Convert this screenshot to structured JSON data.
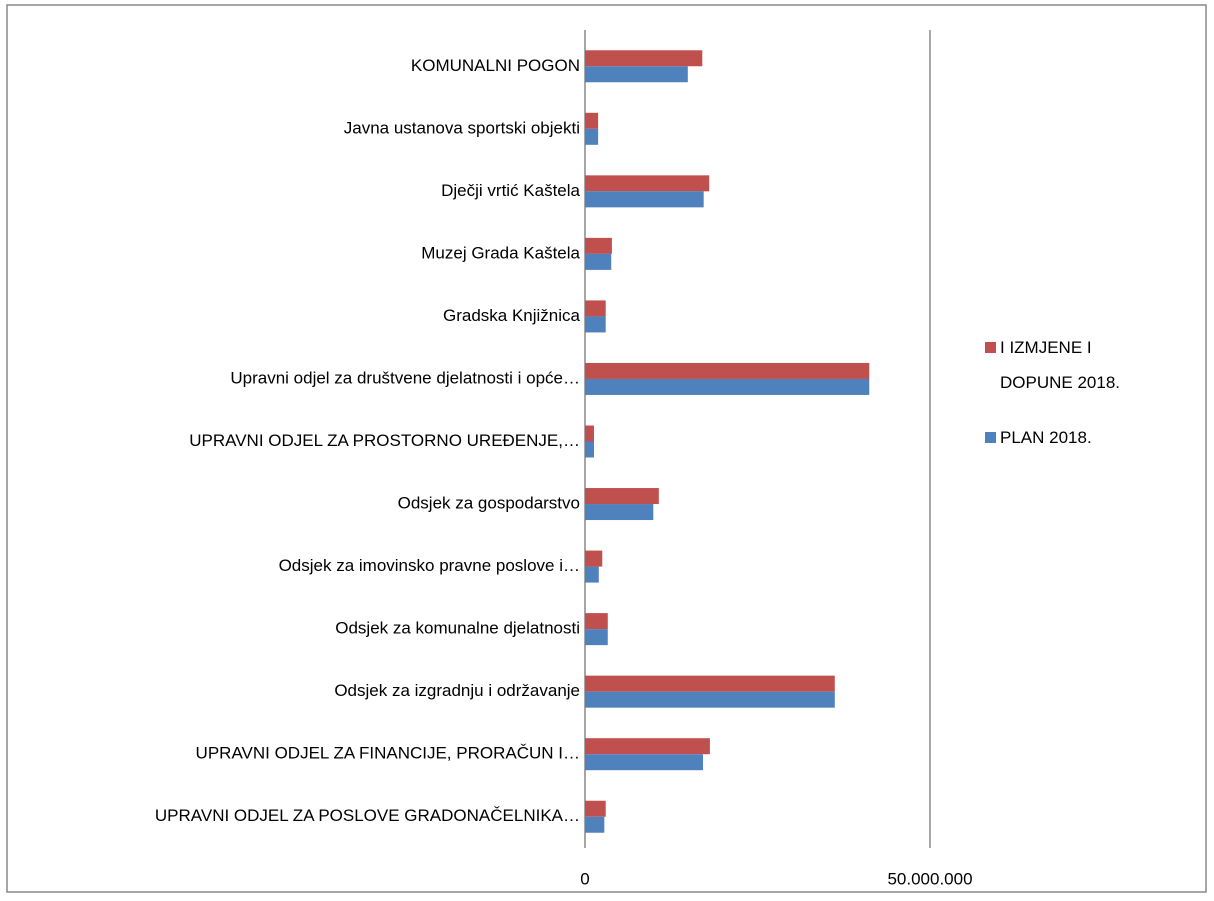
{
  "chart_data": {
    "type": "hbar",
    "categories": [
      "KOMUNALNI POGON",
      "Javna ustanova sportski objekti",
      "Dječji vrtić Kaštela",
      "Muzej Grada Kaštela",
      "Gradska Knjižnica",
      "Upravni odjel za društvene djelatnosti i opće…",
      "UPRAVNI ODJEL ZA PROSTORNO UREĐENJE,…",
      "Odsjek za gospodarstvo",
      "Odsjek za imovinsko pravne poslove i…",
      "Odsjek za komunalne djelatnosti",
      "Odsjek za izgradnju i održavanje",
      "UPRAVNI ODJEL ZA FINANCIJE, PRORAČUN I…",
      "UPRAVNI ODJEL ZA POSLOVE GRADONAČELNIKA…"
    ],
    "series": [
      {
        "name": "I IZMJENE I DOPUNE 2018.",
        "color": "#c0504d",
        "values": [
          17000000,
          1900000,
          18000000,
          3900000,
          3000000,
          41200000,
          1300000,
          10700000,
          2500000,
          3300000,
          36200000,
          18100000,
          3000000
        ]
      },
      {
        "name": "PLAN 2018.",
        "color": "#4f81bd",
        "values": [
          14900000,
          1900000,
          17200000,
          3800000,
          3000000,
          41200000,
          1300000,
          9900000,
          2000000,
          3300000,
          36200000,
          17100000,
          2800000
        ]
      }
    ],
    "xlim": [
      0,
      50000000
    ],
    "xticks": [
      0,
      {
        "value": 50000000,
        "label": "50.000.000"
      }
    ],
    "grid": true,
    "legend": "right"
  }
}
